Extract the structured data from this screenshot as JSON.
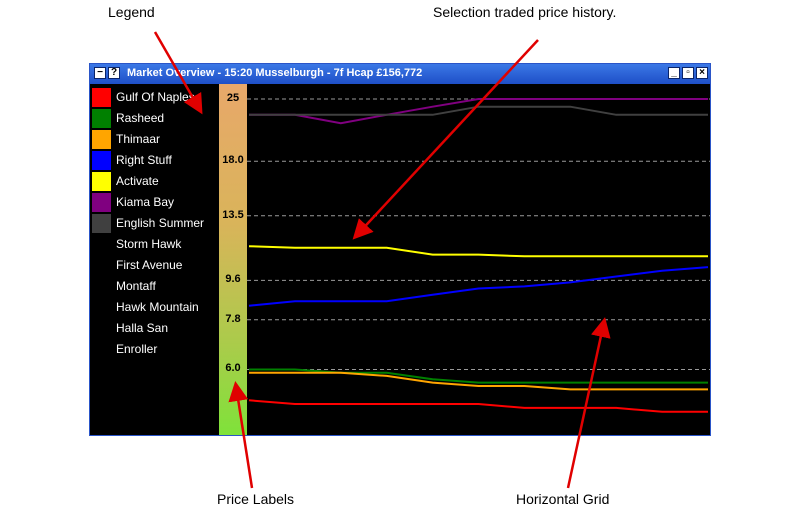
{
  "annotations": {
    "legend": "Legend",
    "history": "Selection traded price history.",
    "price_labels": "Price Labels",
    "grid": "Horizontal Grid"
  },
  "window": {
    "title": "Market Overview - 15:20  Musselburgh - 7f Hcap   £156,772",
    "menu_icon": "minus-icon",
    "help_icon": "question-icon",
    "controls": [
      "minimize-icon",
      "restore-icon",
      "close-icon"
    ]
  },
  "legend": [
    {
      "label": "Gulf Of Naples",
      "color": "#ff0000"
    },
    {
      "label": "Rasheed",
      "color": "#008000"
    },
    {
      "label": "Thimaar",
      "color": "#ffa500"
    },
    {
      "label": "Right Stuff",
      "color": "#0000ff"
    },
    {
      "label": "Activate",
      "color": "#ffff00"
    },
    {
      "label": "Kiama Bay",
      "color": "#800080"
    },
    {
      "label": "English Summer",
      "color": "#404040"
    },
    {
      "label": "Storm Hawk",
      "color": ""
    },
    {
      "label": "First Avenue",
      "color": ""
    },
    {
      "label": "Montaff",
      "color": ""
    },
    {
      "label": "Hawk Mountain",
      "color": ""
    },
    {
      "label": "Halla San",
      "color": ""
    },
    {
      "label": "Enroller",
      "color": ""
    }
  ],
  "chart_data": {
    "type": "line",
    "yscale": "log",
    "y_ticks": [
      "25",
      "18.0",
      "13.5",
      "9.6",
      "7.8",
      "6.0"
    ],
    "y_tick_values": [
      25,
      18.0,
      13.5,
      9.6,
      7.8,
      6.0
    ],
    "grid": true,
    "x": [
      0,
      10,
      20,
      30,
      40,
      50,
      60,
      70,
      80,
      90,
      100
    ],
    "series": [
      {
        "name": "Kiama Bay",
        "color": "#800080",
        "values": [
          23,
          23,
          22,
          23,
          24,
          25,
          25,
          25,
          25,
          25,
          25
        ]
      },
      {
        "name": "English Summer",
        "color": "#404040",
        "values": [
          23,
          23,
          23,
          23,
          23,
          24,
          24,
          24,
          23,
          23,
          23
        ]
      },
      {
        "name": "Activate",
        "color": "#ffff00",
        "values": [
          11.5,
          11.4,
          11.4,
          11.4,
          11.0,
          11.0,
          10.9,
          10.9,
          10.9,
          10.9,
          10.9
        ]
      },
      {
        "name": "Right Stuff",
        "color": "#0000ff",
        "values": [
          8.4,
          8.6,
          8.6,
          8.6,
          8.9,
          9.2,
          9.3,
          9.5,
          9.8,
          10.1,
          10.3
        ]
      },
      {
        "name": "Rasheed",
        "color": "#008000",
        "values": [
          6.0,
          6.0,
          5.9,
          5.9,
          5.7,
          5.6,
          5.6,
          5.6,
          5.6,
          5.6,
          5.6
        ]
      },
      {
        "name": "Thimaar",
        "color": "#ffa500",
        "values": [
          5.9,
          5.9,
          5.9,
          5.8,
          5.6,
          5.5,
          5.5,
          5.4,
          5.4,
          5.4,
          5.4
        ]
      },
      {
        "name": "Gulf Of Naples",
        "color": "#ff0000",
        "values": [
          5.1,
          5.0,
          5.0,
          5.0,
          5.0,
          5.0,
          4.9,
          4.9,
          4.9,
          4.8,
          4.8
        ]
      }
    ]
  }
}
